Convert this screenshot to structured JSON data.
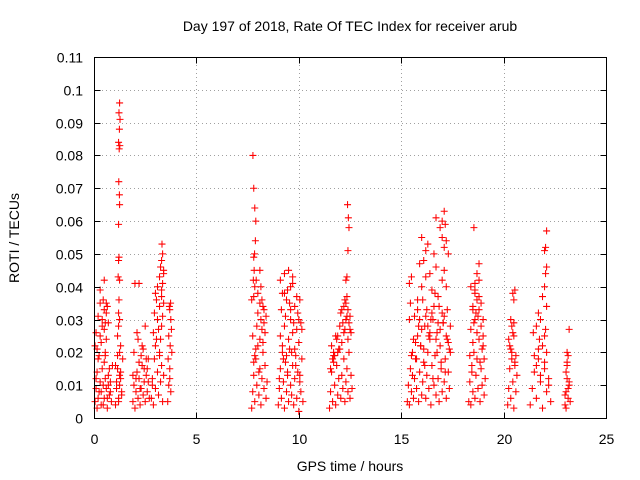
{
  "chart_data": {
    "type": "scatter",
    "title": "Day 197 of 2018, Rate Of TEC Index for receiver arub",
    "xlabel": "GPS time / hours",
    "ylabel": "ROTI / TECUs",
    "xlim": [
      0,
      25
    ],
    "ylim": [
      0,
      0.11
    ],
    "x_ticks": [
      "0",
      "5",
      "10",
      "15",
      "20",
      "25"
    ],
    "y_ticks": [
      "0",
      "0.01",
      "0.02",
      "0.03",
      "0.04",
      "0.05",
      "0.06",
      "0.07",
      "0.08",
      "0.09",
      "0.1",
      "0.11"
    ],
    "grid": true,
    "marker": "+",
    "color": "#ff0000",
    "series": [
      {
        "name": "ROTI",
        "x": [
          0.05,
          0.1,
          0.15,
          0.2,
          0.25,
          0.3,
          0.35,
          0.4,
          0.45,
          0.5,
          0.55,
          0.6,
          0.65,
          0.7,
          0.75,
          0.8,
          0.85,
          0.9,
          0.05,
          0.1,
          0.15,
          0.2,
          0.25,
          0.3,
          0.35,
          0.4,
          0.45,
          0.5,
          0.55,
          0.6,
          0.65,
          0.7,
          0.75,
          0.8,
          0.1,
          0.2,
          0.3,
          0.4,
          0.5,
          0.6,
          0.7,
          0.15,
          0.35,
          0.55,
          0.3,
          0.45,
          0.5,
          0.6,
          0.65,
          0.5,
          0.55,
          1.05,
          1.1,
          1.15,
          1.2,
          1.25,
          1.3,
          1.35,
          1.4,
          1.1,
          1.15,
          1.2,
          1.25,
          1.3,
          1.35,
          1.05,
          1.2,
          1.3,
          1.15,
          1.25,
          1.25,
          1.2,
          1.22,
          1.25,
          1.18,
          1.2,
          1.22,
          1.2,
          1.25,
          1.24,
          1.21,
          1.23,
          1.26,
          1.2,
          1.24,
          1.27,
          1.22,
          1.25,
          1.9,
          1.95,
          2.0,
          2.05,
          2.1,
          2.15,
          2.2,
          2.25,
          2.3,
          2.35,
          2.4,
          2.45,
          2.5,
          2.55,
          2.6,
          2.65,
          2.7,
          1.95,
          2.05,
          2.15,
          2.25,
          2.35,
          2.45,
          2.55,
          2.65,
          2.1,
          2.3,
          2.5,
          1.9,
          2.2,
          2.4,
          2.6,
          2.0,
          2.2,
          2.8,
          2.85,
          2.9,
          2.95,
          3.0,
          3.05,
          3.1,
          3.15,
          3.2,
          3.25,
          3.3,
          3.35,
          3.4,
          2.9,
          3.0,
          3.1,
          3.2,
          3.3,
          3.4,
          2.85,
          2.95,
          3.05,
          3.15,
          3.25,
          3.35,
          3.0,
          3.1,
          3.2,
          3.3,
          3.4,
          3.25,
          3.35,
          3.2,
          3.3,
          3.4,
          3.3,
          3.35,
          3.32,
          3.6,
          3.65,
          3.7,
          3.75,
          3.8,
          3.65,
          3.75,
          3.7,
          3.62,
          3.72,
          3.78,
          3.68,
          3.7,
          3.74,
          7.7,
          7.75,
          7.8,
          7.85,
          7.9,
          7.95,
          8.0,
          8.05,
          8.1,
          8.15,
          8.2,
          8.25,
          8.3,
          8.35,
          8.4,
          8.45,
          7.75,
          7.85,
          7.95,
          8.05,
          8.15,
          8.25,
          8.35,
          7.8,
          7.9,
          8.0,
          8.1,
          8.2,
          8.3,
          8.4,
          7.7,
          8.1,
          7.8,
          7.85,
          7.78,
          7.82,
          7.8,
          7.84,
          7.88,
          7.9,
          7.85,
          7.8,
          7.76,
          7.92,
          8.0,
          8.1,
          8.15,
          8.2,
          8.3,
          8.25,
          9.0,
          9.05,
          9.1,
          9.15,
          9.2,
          9.25,
          9.3,
          9.35,
          9.4,
          9.45,
          9.5,
          9.55,
          9.6,
          9.65,
          9.7,
          9.75,
          9.8,
          9.85,
          9.9,
          9.95,
          10.0,
          10.05,
          10.1,
          10.15,
          10.2,
          9.1,
          9.2,
          9.3,
          9.4,
          9.5,
          9.6,
          9.7,
          9.8,
          9.9,
          10.0,
          10.1,
          9.05,
          9.25,
          9.45,
          9.65,
          9.85,
          10.05,
          9.15,
          9.35,
          9.55,
          9.75,
          9.95,
          10.15,
          9.2,
          9.4,
          9.6,
          9.8,
          10.0,
          9.3,
          9.5,
          9.7,
          9.9,
          9.1,
          9.45,
          9.7,
          10.05,
          9.3,
          9.6,
          11.5,
          11.55,
          11.6,
          11.65,
          11.7,
          11.75,
          11.8,
          11.85,
          11.9,
          11.95,
          12.0,
          12.05,
          12.1,
          12.15,
          12.2,
          12.25,
          12.3,
          12.35,
          12.4,
          12.45,
          12.5,
          12.55,
          12.6,
          11.6,
          11.7,
          11.8,
          11.9,
          12.0,
          12.1,
          12.2,
          12.3,
          12.4,
          12.5,
          11.55,
          11.75,
          11.95,
          12.15,
          12.35,
          12.55,
          11.65,
          11.85,
          12.05,
          12.25,
          12.45,
          11.7,
          11.9,
          12.1,
          12.3,
          12.5,
          12.2,
          12.25,
          12.35,
          12.4,
          12.3,
          12.35,
          12.4,
          12.45,
          12.42,
          12.38,
          15.3,
          15.35,
          15.4,
          15.45,
          15.5,
          15.55,
          15.6,
          15.65,
          15.7,
          15.75,
          15.8,
          15.85,
          15.9,
          15.95,
          16.0,
          16.05,
          16.1,
          16.15,
          16.2,
          16.25,
          16.3,
          16.35,
          16.4,
          16.45,
          16.5,
          16.55,
          16.6,
          16.65,
          16.7,
          16.75,
          16.8,
          16.85,
          16.9,
          16.95,
          17.0,
          17.05,
          17.1,
          17.15,
          17.2,
          17.25,
          17.3,
          17.35,
          17.4,
          15.4,
          15.6,
          15.8,
          16.0,
          16.2,
          16.4,
          16.6,
          16.8,
          17.0,
          17.2,
          17.4,
          15.5,
          15.7,
          15.9,
          16.1,
          16.3,
          16.5,
          16.7,
          16.9,
          17.1,
          17.3,
          15.45,
          15.65,
          15.85,
          16.05,
          16.25,
          16.45,
          16.65,
          16.85,
          17.05,
          17.25,
          15.55,
          15.75,
          15.95,
          16.15,
          16.35,
          16.55,
          16.75,
          16.95,
          17.15,
          17.35,
          15.4,
          15.5,
          15.8,
          16.0,
          16.2,
          16.5,
          16.8,
          17.0,
          16.1,
          16.4,
          17.2,
          16.7,
          17.1,
          16.2,
          16.3,
          15.9,
          16.0,
          16.6,
          17.1,
          16.9,
          17.3,
          17.2,
          16.7,
          17.0,
          17.15,
          17.0,
          17.1,
          18.3,
          18.35,
          18.4,
          18.45,
          18.5,
          18.55,
          18.6,
          18.65,
          18.7,
          18.75,
          18.8,
          18.85,
          18.9,
          18.95,
          19.0,
          19.05,
          19.1,
          18.4,
          18.5,
          18.6,
          18.7,
          18.8,
          18.9,
          19.0,
          18.35,
          18.55,
          18.75,
          18.95,
          18.45,
          18.65,
          18.85,
          19.05,
          18.5,
          18.7,
          18.8,
          18.6,
          18.9,
          18.8,
          18.6,
          18.4,
          19.0,
          18.7,
          18.5,
          18.8,
          18.6,
          18.55,
          20.2,
          20.25,
          20.3,
          20.35,
          20.4,
          20.45,
          20.5,
          20.55,
          20.6,
          20.65,
          20.3,
          20.4,
          20.5,
          20.6,
          20.25,
          20.35,
          20.45,
          20.55,
          20.5,
          20.4,
          20.35,
          20.5,
          20.45,
          20.55,
          21.3,
          21.4,
          21.5,
          21.6,
          21.7,
          21.8,
          21.9,
          22.0,
          22.1,
          22.2,
          22.3,
          21.5,
          21.6,
          21.7,
          21.8,
          21.9,
          22.0,
          22.1,
          22.2,
          21.45,
          21.75,
          22.05,
          21.6,
          21.8,
          22.0,
          22.1,
          21.7,
          21.9,
          22.0,
          22.05,
          22.1,
          22.0,
          22.05,
          22.1,
          23.0,
          23.05,
          23.1,
          23.15,
          23.2,
          23.25,
          23.05,
          23.15,
          23.1,
          23.2,
          23.0,
          23.1,
          23.15,
          23.05,
          23.1,
          23.2
        ],
        "y": [
          0.005,
          0.012,
          0.003,
          0.018,
          0.008,
          0.025,
          0.004,
          0.015,
          0.01,
          0.006,
          0.02,
          0.009,
          0.003,
          0.013,
          0.007,
          0.011,
          0.005,
          0.016,
          0.022,
          0.009,
          0.014,
          0.006,
          0.019,
          0.011,
          0.008,
          0.028,
          0.004,
          0.017,
          0.012,
          0.024,
          0.006,
          0.01,
          0.015,
          0.008,
          0.026,
          0.031,
          0.035,
          0.03,
          0.027,
          0.032,
          0.029,
          0.021,
          0.023,
          0.019,
          0.039,
          0.036,
          0.042,
          0.035,
          0.034,
          0.033,
          0.029,
          0.004,
          0.009,
          0.015,
          0.006,
          0.02,
          0.012,
          0.007,
          0.018,
          0.011,
          0.025,
          0.005,
          0.013,
          0.022,
          0.008,
          0.016,
          0.028,
          0.014,
          0.019,
          0.01,
          0.03,
          0.032,
          0.036,
          0.042,
          0.043,
          0.048,
          0.049,
          0.059,
          0.065,
          0.068,
          0.072,
          0.082,
          0.083,
          0.084,
          0.088,
          0.091,
          0.093,
          0.096,
          0.005,
          0.01,
          0.003,
          0.008,
          0.014,
          0.006,
          0.012,
          0.004,
          0.009,
          0.016,
          0.007,
          0.011,
          0.005,
          0.013,
          0.008,
          0.018,
          0.006,
          0.02,
          0.012,
          0.024,
          0.009,
          0.022,
          0.015,
          0.018,
          0.011,
          0.026,
          0.019,
          0.028,
          0.013,
          0.017,
          0.021,
          0.015,
          0.041,
          0.041,
          0.006,
          0.012,
          0.004,
          0.018,
          0.009,
          0.024,
          0.014,
          0.007,
          0.02,
          0.011,
          0.016,
          0.005,
          0.013,
          0.026,
          0.022,
          0.03,
          0.019,
          0.028,
          0.035,
          0.01,
          0.032,
          0.036,
          0.027,
          0.024,
          0.031,
          0.038,
          0.04,
          0.043,
          0.039,
          0.044,
          0.046,
          0.041,
          0.034,
          0.037,
          0.045,
          0.048,
          0.05,
          0.053,
          0.005,
          0.01,
          0.015,
          0.008,
          0.02,
          0.025,
          0.03,
          0.012,
          0.018,
          0.022,
          0.027,
          0.034,
          0.033,
          0.035,
          0.003,
          0.008,
          0.013,
          0.005,
          0.018,
          0.01,
          0.022,
          0.007,
          0.015,
          0.004,
          0.012,
          0.02,
          0.009,
          0.016,
          0.006,
          0.011,
          0.025,
          0.019,
          0.028,
          0.014,
          0.03,
          0.023,
          0.026,
          0.017,
          0.021,
          0.032,
          0.024,
          0.027,
          0.029,
          0.031,
          0.036,
          0.035,
          0.037,
          0.04,
          0.042,
          0.045,
          0.049,
          0.05,
          0.054,
          0.06,
          0.064,
          0.07,
          0.08,
          0.042,
          0.038,
          0.045,
          0.04,
          0.036,
          0.033,
          0.034,
          0.004,
          0.009,
          0.015,
          0.006,
          0.02,
          0.011,
          0.003,
          0.017,
          0.008,
          0.013,
          0.005,
          0.021,
          0.01,
          0.007,
          0.016,
          0.004,
          0.012,
          0.019,
          0.006,
          0.014,
          0.002,
          0.011,
          0.008,
          0.018,
          0.005,
          0.025,
          0.022,
          0.028,
          0.019,
          0.024,
          0.03,
          0.026,
          0.021,
          0.027,
          0.023,
          0.029,
          0.012,
          0.018,
          0.014,
          0.02,
          0.016,
          0.013,
          0.033,
          0.031,
          0.035,
          0.029,
          0.032,
          0.027,
          0.038,
          0.036,
          0.04,
          0.034,
          0.03,
          0.044,
          0.045,
          0.043,
          0.037,
          0.042,
          0.039,
          0.041,
          0.036,
          0.038,
          0.033,
          0.003,
          0.008,
          0.014,
          0.005,
          0.019,
          0.01,
          0.004,
          0.016,
          0.007,
          0.012,
          0.021,
          0.006,
          0.013,
          0.009,
          0.018,
          0.005,
          0.011,
          0.015,
          0.008,
          0.02,
          0.006,
          0.013,
          0.009,
          0.022,
          0.017,
          0.025,
          0.02,
          0.028,
          0.023,
          0.026,
          0.03,
          0.024,
          0.027,
          0.015,
          0.019,
          0.021,
          0.029,
          0.031,
          0.026,
          0.018,
          0.024,
          0.032,
          0.027,
          0.029,
          0.02,
          0.025,
          0.033,
          0.035,
          0.031,
          0.034,
          0.036,
          0.037,
          0.033,
          0.042,
          0.043,
          0.051,
          0.058,
          0.061,
          0.065,
          0.005,
          0.01,
          0.004,
          0.015,
          0.008,
          0.02,
          0.006,
          0.012,
          0.018,
          0.009,
          0.025,
          0.005,
          0.014,
          0.022,
          0.007,
          0.011,
          0.017,
          0.028,
          0.006,
          0.013,
          0.02,
          0.009,
          0.024,
          0.004,
          0.016,
          0.03,
          0.01,
          0.019,
          0.007,
          0.026,
          0.012,
          0.005,
          0.022,
          0.015,
          0.008,
          0.029,
          0.011,
          0.018,
          0.006,
          0.024,
          0.014,
          0.009,
          0.02,
          0.03,
          0.024,
          0.033,
          0.027,
          0.031,
          0.026,
          0.034,
          0.029,
          0.032,
          0.025,
          0.028,
          0.019,
          0.023,
          0.03,
          0.021,
          0.028,
          0.032,
          0.024,
          0.027,
          0.031,
          0.023,
          0.035,
          0.031,
          0.028,
          0.036,
          0.033,
          0.03,
          0.038,
          0.034,
          0.029,
          0.033,
          0.013,
          0.018,
          0.022,
          0.016,
          0.025,
          0.012,
          0.02,
          0.017,
          0.014,
          0.021,
          0.041,
          0.043,
          0.036,
          0.04,
          0.043,
          0.039,
          0.037,
          0.042,
          0.048,
          0.044,
          0.04,
          0.046,
          0.045,
          0.051,
          0.053,
          0.047,
          0.055,
          0.05,
          0.052,
          0.058,
          0.05,
          0.054,
          0.061,
          0.055,
          0.059,
          0.06,
          0.063,
          0.005,
          0.011,
          0.004,
          0.016,
          0.008,
          0.02,
          0.006,
          0.013,
          0.018,
          0.009,
          0.024,
          0.005,
          0.015,
          0.01,
          0.022,
          0.007,
          0.012,
          0.027,
          0.023,
          0.03,
          0.026,
          0.033,
          0.028,
          0.025,
          0.019,
          0.029,
          0.031,
          0.021,
          0.014,
          0.032,
          0.017,
          0.018,
          0.034,
          0.036,
          0.037,
          0.038,
          0.035,
          0.042,
          0.041,
          0.04,
          0.03,
          0.044,
          0.033,
          0.047,
          0.039,
          0.058,
          0.004,
          0.009,
          0.015,
          0.006,
          0.02,
          0.011,
          0.003,
          0.016,
          0.008,
          0.013,
          0.022,
          0.018,
          0.025,
          0.019,
          0.024,
          0.021,
          0.026,
          0.017,
          0.029,
          0.028,
          0.03,
          0.036,
          0.038,
          0.039,
          0.004,
          0.009,
          0.014,
          0.006,
          0.018,
          0.011,
          0.003,
          0.015,
          0.008,
          0.012,
          0.005,
          0.019,
          0.016,
          0.021,
          0.013,
          0.022,
          0.017,
          0.02,
          0.01,
          0.026,
          0.024,
          0.027,
          0.028,
          0.03,
          0.025,
          0.034,
          0.032,
          0.037,
          0.04,
          0.044,
          0.046,
          0.051,
          0.052,
          0.057,
          0.004,
          0.008,
          0.012,
          0.006,
          0.01,
          0.005,
          0.014,
          0.009,
          0.017,
          0.011,
          0.007,
          0.016,
          0.019,
          0.003,
          0.02,
          0.027
        ]
      }
    ]
  }
}
